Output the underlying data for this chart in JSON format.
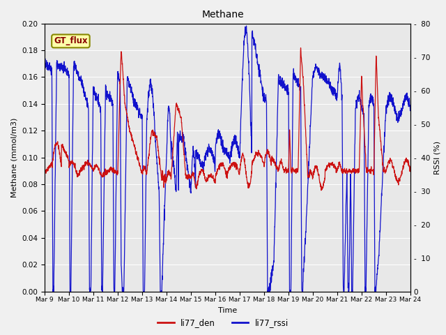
{
  "title": "Methane",
  "ylabel_left": "Methane (mmol/m3)",
  "ylabel_right": "RSSI (%)",
  "xlabel": "Time",
  "ylim_left": [
    0.0,
    0.2
  ],
  "ylim_right": [
    0,
    80
  ],
  "yticks_left": [
    0.0,
    0.02,
    0.04,
    0.06,
    0.08,
    0.1,
    0.12,
    0.14,
    0.16,
    0.18,
    0.2
  ],
  "yticks_right": [
    0,
    10,
    20,
    30,
    40,
    50,
    60,
    70,
    80
  ],
  "color_den": "#cc1111",
  "color_rssi": "#1111cc",
  "bg_color": "#e8e8e8",
  "fig_bg": "#f0f0f0",
  "annotation_text": "GT_flux",
  "annotation_bg": "#ffffaa",
  "annotation_border": "#888800",
  "legend_labels": [
    "li77_den",
    "li77_rssi"
  ],
  "xtick_labels": [
    "Mar 9",
    "Mar 10",
    "Mar 11",
    "Mar 12",
    "Mar 13",
    "Mar 14",
    "Mar 15",
    "Mar 16",
    "Mar 17",
    "Mar 18",
    "Mar 19",
    "Mar 20",
    "Mar 21",
    "Mar 22",
    "Mar 23",
    "Mar 24"
  ]
}
